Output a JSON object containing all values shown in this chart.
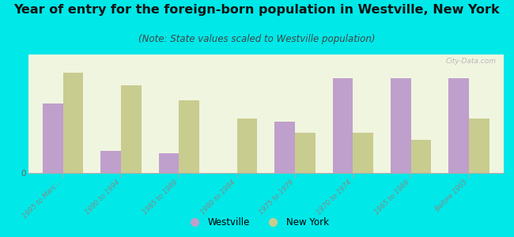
{
  "title": "Year of entry for the foreign-born population in Westville, New York",
  "subtitle": "(Note: State values scaled to Westville population)",
  "categories": [
    "1995 to Marc...",
    "1990 to 1994",
    "1985 to 1989",
    "1980 to 1984",
    "1975 to 1979",
    "1970 to 1974",
    "1965 to 1969",
    "Before 1965"
  ],
  "westville_values": [
    38,
    12,
    11,
    0,
    28,
    52,
    52,
    52
  ],
  "newyork_values": [
    55,
    48,
    40,
    30,
    22,
    22,
    18,
    30
  ],
  "westville_color": "#bf9fcc",
  "newyork_color": "#c8cc8f",
  "background_color": "#00e8e8",
  "plot_bg_top": "#f0f5e0",
  "plot_bg_bottom": "#e8f0d8",
  "title_fontsize": 11.5,
  "subtitle_fontsize": 8.5,
  "bar_width": 0.35,
  "ylim": [
    0,
    65
  ],
  "legend_labels": [
    "Westville",
    "New York"
  ],
  "tick_label_color": "#888888",
  "title_color": "#111111",
  "subtitle_color": "#444444"
}
